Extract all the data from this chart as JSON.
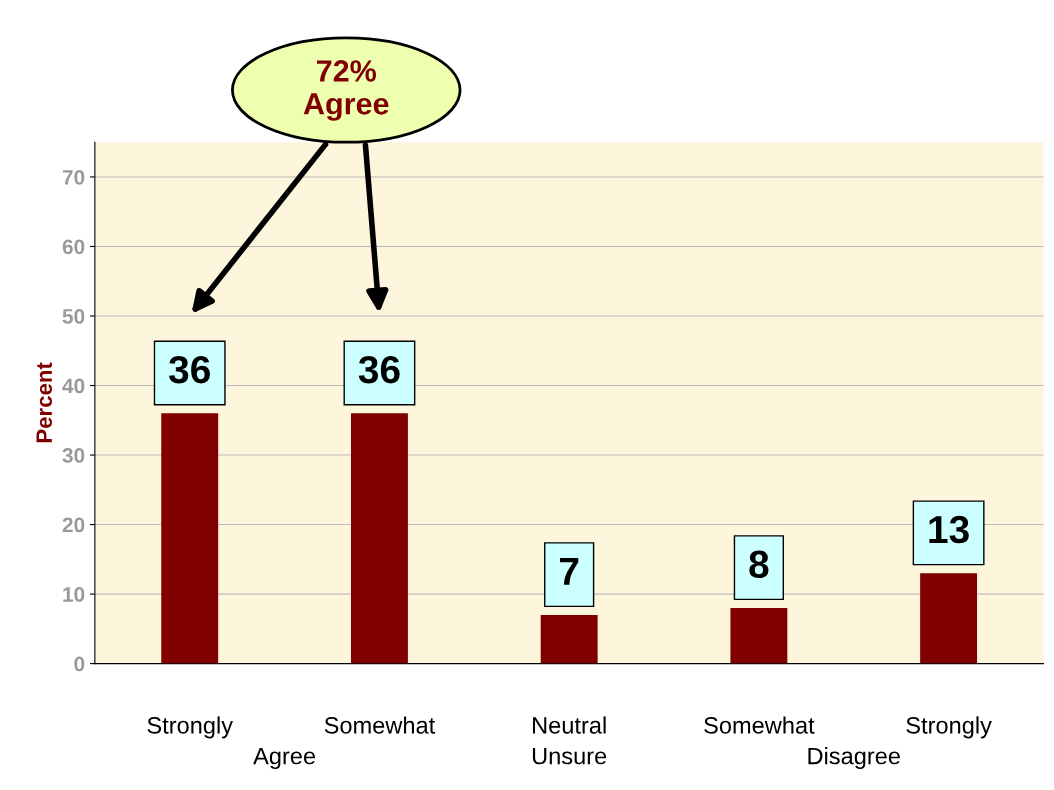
{
  "chart_data": {
    "type": "bar",
    "ylabel": "Percent",
    "categories": [
      "Strongly",
      "Somewhat",
      "Neutral",
      "Somewhat",
      "Strongly"
    ],
    "values": [
      36,
      36,
      7,
      8,
      13
    ],
    "color": "#800000",
    "ylim": [
      0,
      75
    ],
    "yticks": [
      0,
      10,
      20,
      30,
      40,
      50,
      60,
      70
    ],
    "grid": "y",
    "data_labels": true,
    "annotations": [
      "72%\nAgree",
      "Agree",
      "Unsure",
      "Disagree"
    ]
  }
}
